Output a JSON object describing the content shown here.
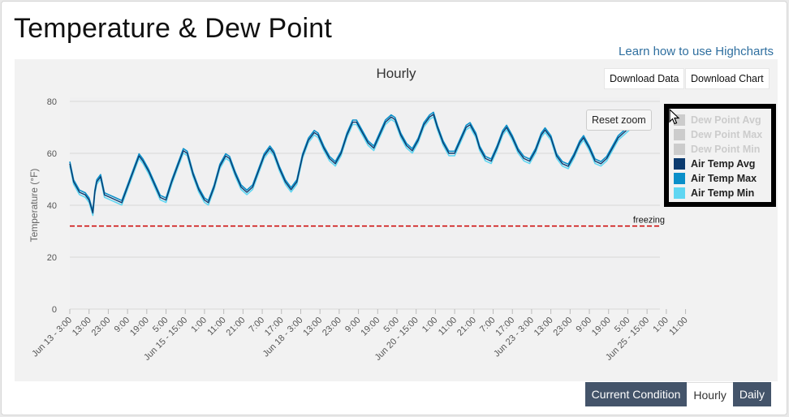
{
  "page": {
    "title": "Temperature & Dew Point",
    "learn_link": "Learn how to use Highcharts"
  },
  "toolbar": {
    "download_data": "Download Data",
    "download_chart": "Download Chart",
    "reset_zoom": "Reset zoom"
  },
  "tabs": [
    {
      "label": "Current Condition",
      "active": false
    },
    {
      "label": "Hourly",
      "active": true
    },
    {
      "label": "Daily",
      "active": false
    }
  ],
  "legend": [
    {
      "name": "Dew Point Avg",
      "color": "#cccccc",
      "visible": false
    },
    {
      "name": "Dew Point Max",
      "color": "#cccccc",
      "visible": false
    },
    {
      "name": "Dew Point Min",
      "color": "#cccccc",
      "visible": false
    },
    {
      "name": "Air Temp Avg",
      "color": "#0b3a6e",
      "visible": true
    },
    {
      "name": "Air Temp Max",
      "color": "#0a8fc9",
      "visible": true
    },
    {
      "name": "Air Temp Min",
      "color": "#5fd6f2",
      "visible": true
    }
  ],
  "chart_data": {
    "type": "line",
    "title": "Hourly",
    "ylabel": "Temperature (°F)",
    "ylim": [
      0,
      80
    ],
    "yticks": [
      0,
      20,
      40,
      60,
      80
    ],
    "grid": true,
    "legend_position": "right",
    "x_tick_labels": [
      "Jun 13 - 3:00",
      "13:00",
      "23:00",
      "9:00",
      "19:00",
      "5:00",
      "Jun 15 - 15:00",
      "1:00",
      "11:00",
      "21:00",
      "7:00",
      "17:00",
      "Jun 18 - 3:00",
      "13:00",
      "23:00",
      "9:00",
      "19:00",
      "5:00",
      "Jun 20 - 15:00",
      "1:00",
      "11:00",
      "21:00",
      "7:00",
      "17:00",
      "Jun 23 - 3:00",
      "13:00",
      "23:00",
      "9:00",
      "19:00",
      "5:00",
      "Jun 25 - 15:00",
      "1:00",
      "11:00"
    ],
    "x_step_hours": 10,
    "x_start_label": "Jun 13 - 3:00",
    "x_end_hours": 305,
    "plot_line": {
      "label": "freezing",
      "value": 32,
      "color": "#cc0000",
      "style": "dashed"
    },
    "hourly_points": [
      [
        0,
        56
      ],
      [
        2,
        49
      ],
      [
        5,
        45
      ],
      [
        8,
        44
      ],
      [
        10,
        42
      ],
      [
        12,
        37
      ],
      [
        13,
        45
      ],
      [
        14,
        49
      ],
      [
        16,
        51
      ],
      [
        18,
        44
      ],
      [
        21,
        43
      ],
      [
        24,
        42
      ],
      [
        27,
        41
      ],
      [
        30,
        47
      ],
      [
        33,
        53
      ],
      [
        36,
        59
      ],
      [
        38,
        57
      ],
      [
        41,
        53
      ],
      [
        44,
        48
      ],
      [
        47,
        43
      ],
      [
        50,
        42
      ],
      [
        53,
        49
      ],
      [
        56,
        55
      ],
      [
        59,
        61
      ],
      [
        61,
        60
      ],
      [
        64,
        52
      ],
      [
        67,
        46
      ],
      [
        70,
        42
      ],
      [
        72,
        41
      ],
      [
        75,
        47
      ],
      [
        78,
        55
      ],
      [
        81,
        59
      ],
      [
        83,
        58
      ],
      [
        86,
        52
      ],
      [
        89,
        47
      ],
      [
        92,
        45
      ],
      [
        95,
        47
      ],
      [
        98,
        53
      ],
      [
        101,
        59
      ],
      [
        104,
        62
      ],
      [
        106,
        60
      ],
      [
        109,
        54
      ],
      [
        112,
        49
      ],
      [
        115,
        46
      ],
      [
        118,
        49
      ],
      [
        121,
        59
      ],
      [
        124,
        65
      ],
      [
        127,
        68
      ],
      [
        129,
        67
      ],
      [
        132,
        62
      ],
      [
        135,
        58
      ],
      [
        138,
        56
      ],
      [
        141,
        60
      ],
      [
        144,
        67
      ],
      [
        147,
        72
      ],
      [
        149,
        72
      ],
      [
        152,
        68
      ],
      [
        155,
        64
      ],
      [
        158,
        62
      ],
      [
        161,
        67
      ],
      [
        164,
        72
      ],
      [
        167,
        74
      ],
      [
        169,
        73
      ],
      [
        172,
        67
      ],
      [
        175,
        63
      ],
      [
        178,
        61
      ],
      [
        181,
        65
      ],
      [
        184,
        71
      ],
      [
        187,
        74
      ],
      [
        189,
        75
      ],
      [
        191,
        70
      ],
      [
        194,
        64
      ],
      [
        197,
        60
      ],
      [
        200,
        60
      ],
      [
        203,
        65
      ],
      [
        206,
        70
      ],
      [
        208,
        71
      ],
      [
        211,
        67
      ],
      [
        213,
        62
      ],
      [
        216,
        58
      ],
      [
        219,
        57
      ],
      [
        222,
        62
      ],
      [
        225,
        68
      ],
      [
        227,
        70
      ],
      [
        230,
        66
      ],
      [
        233,
        61
      ],
      [
        236,
        58
      ],
      [
        239,
        57
      ],
      [
        242,
        61
      ],
      [
        245,
        67
      ],
      [
        247,
        69
      ],
      [
        250,
        66
      ],
      [
        253,
        59
      ],
      [
        256,
        56
      ],
      [
        259,
        55
      ],
      [
        262,
        59
      ],
      [
        265,
        64
      ],
      [
        267,
        66
      ],
      [
        270,
        62
      ],
      [
        273,
        57
      ],
      [
        276,
        56
      ],
      [
        279,
        58
      ],
      [
        282,
        62
      ],
      [
        285,
        66
      ],
      [
        288,
        68
      ],
      [
        291,
        70
      ],
      [
        293,
        70
      ]
    ]
  }
}
